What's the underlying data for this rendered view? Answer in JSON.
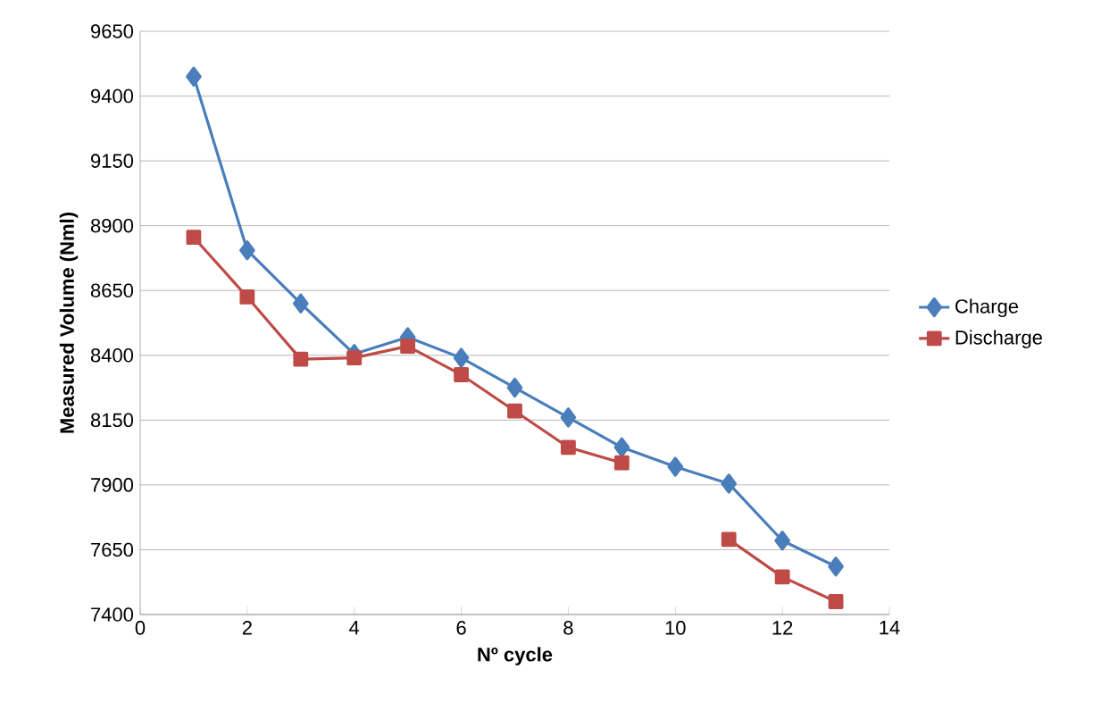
{
  "chart_data": {
    "type": "line",
    "xlabel": "Nº cycle",
    "ylabel": "Measured Volume (Nml)",
    "x": [
      1,
      2,
      3,
      4,
      5,
      6,
      7,
      8,
      9,
      10,
      11,
      12,
      13
    ],
    "series": [
      {
        "name": "Charge",
        "color": "#4a7ebb",
        "marker": "diamond",
        "values": [
          9475,
          8805,
          8600,
          8405,
          8470,
          8390,
          8275,
          8160,
          8045,
          7970,
          7905,
          7685,
          7585
        ]
      },
      {
        "name": "Discharge",
        "color": "#be4b48",
        "marker": "square",
        "values": [
          8855,
          8625,
          8385,
          8390,
          8435,
          8325,
          8185,
          8045,
          7985,
          null,
          7690,
          7545,
          7450
        ]
      }
    ],
    "xlim": [
      0,
      14
    ],
    "ylim": [
      7400,
      9650
    ],
    "xticks": [
      0,
      2,
      4,
      6,
      8,
      10,
      12,
      14
    ],
    "yticks": [
      7400,
      7650,
      7900,
      8150,
      8400,
      8650,
      8900,
      9150,
      9400,
      9650
    ],
    "grid": "y",
    "legend": "right",
    "line_style": "solid"
  }
}
